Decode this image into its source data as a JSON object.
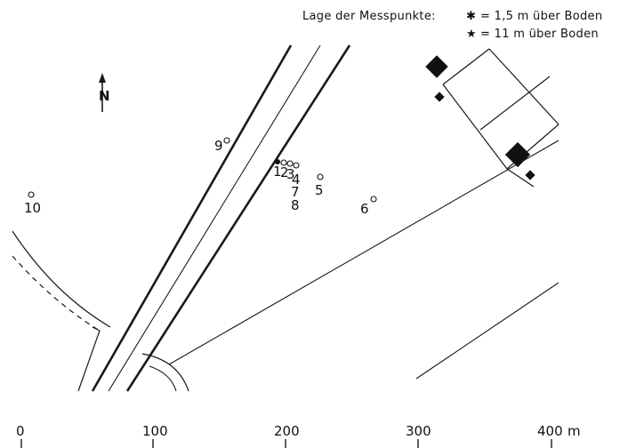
{
  "legend": {
    "title": "Lage der Messpunkte:",
    "row1_symbol": "✱",
    "row1_text": "= 1,5 m  über  Boden",
    "row2_symbol": "★",
    "row2_text": "= 11 m  über  Boden"
  },
  "north_arrow": {
    "label": "N",
    "icon": "north-arrow-icon"
  },
  "points": [
    {
      "id": "1",
      "label": "1"
    },
    {
      "id": "2",
      "label": "2"
    },
    {
      "id": "3",
      "label": "3"
    },
    {
      "id": "4",
      "label": "4"
    },
    {
      "id": "5",
      "label": "5"
    },
    {
      "id": "6",
      "label": "6"
    },
    {
      "id": "7",
      "label": "7"
    },
    {
      "id": "8",
      "label": "8"
    },
    {
      "id": "9",
      "label": "9"
    },
    {
      "id": "10",
      "label": "10"
    }
  ],
  "scale_bar": {
    "ticks": [
      "0",
      "100",
      "200",
      "300",
      "400"
    ],
    "unit": "m"
  }
}
